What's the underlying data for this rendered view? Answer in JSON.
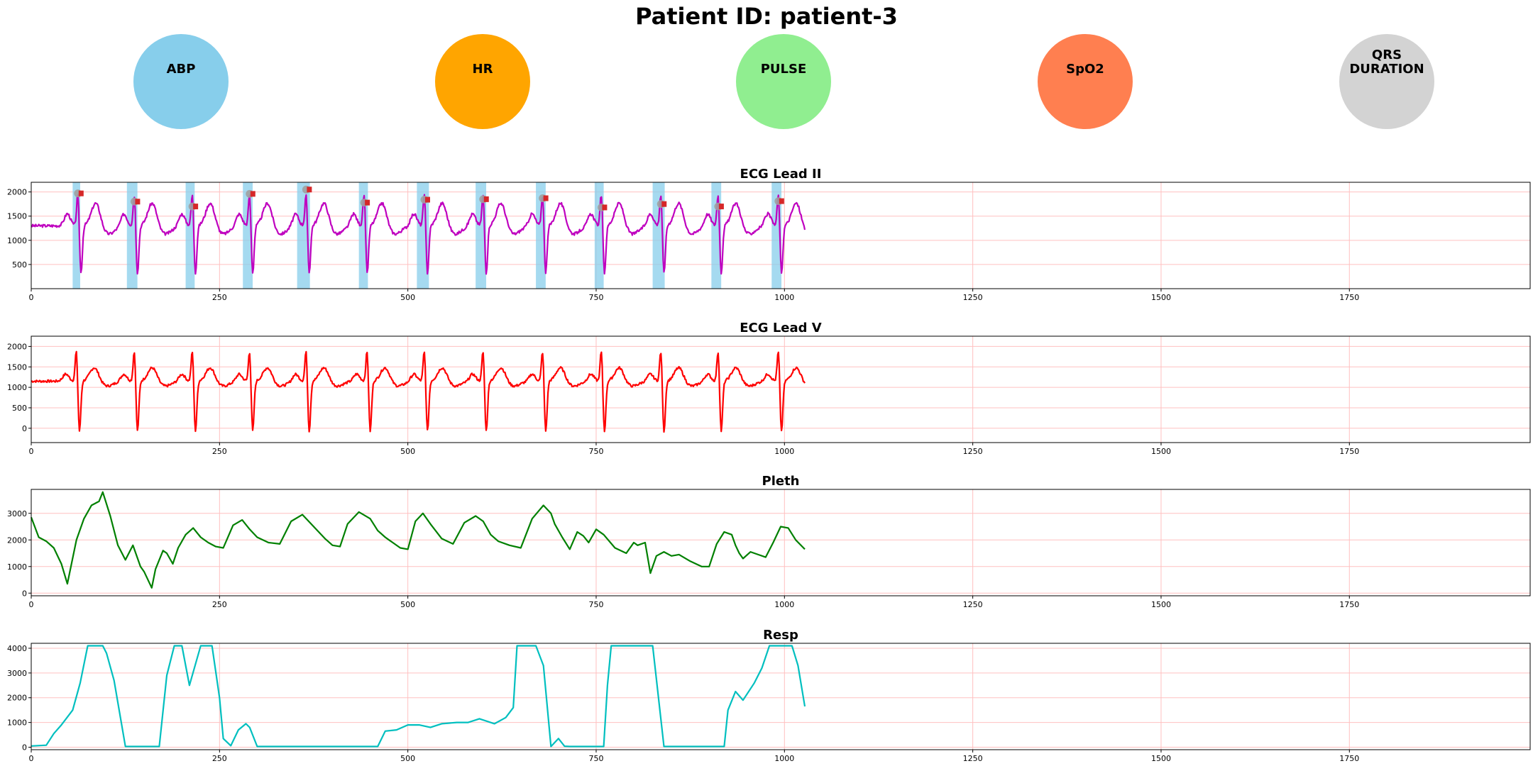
{
  "page": {
    "title": "Patient ID: patient-3"
  },
  "vitals": [
    {
      "label": "ABP",
      "color": "#87ceeb"
    },
    {
      "label": "HR",
      "color": "#ffa500"
    },
    {
      "label": "PULSE",
      "color": "#90ee90"
    },
    {
      "label": "SpO2",
      "color": "#ff7f50"
    },
    {
      "label": "QRS\nDURATION",
      "color": "#d3d3d3"
    }
  ],
  "chart_data": [
    {
      "type": "line",
      "title": "ECG Lead II",
      "color": "#bf00bf",
      "xlim": [
        0,
        1990
      ],
      "ylim": [
        0,
        2200
      ],
      "xticks": [
        0,
        250,
        500,
        750,
        1000,
        1250,
        1500,
        1750
      ],
      "yticks": [
        500,
        1000,
        1500,
        2000
      ],
      "grid": true,
      "baseline": 1300,
      "amp": 500,
      "spike": 700,
      "dip": 1000,
      "seed": 3,
      "beats": [
        62,
        137,
        214,
        290,
        365,
        442,
        522,
        600,
        679,
        757,
        836,
        912,
        992
      ],
      "peak_values": [
        1970,
        1800,
        1700,
        1960,
        2050,
        1780,
        1840,
        1850,
        1870,
        1680,
        1750,
        1700,
        1810
      ],
      "qrs_regions": [
        [
          55,
          65
        ],
        [
          127,
          141
        ],
        [
          205,
          217
        ],
        [
          281,
          294
        ],
        [
          353,
          370
        ],
        [
          435,
          447
        ],
        [
          512,
          528
        ],
        [
          590,
          604
        ],
        [
          670,
          683
        ],
        [
          748,
          760
        ],
        [
          825,
          841
        ],
        [
          903,
          916
        ],
        [
          983,
          996
        ]
      ],
      "region_color": "#87ceeb",
      "marker_color": "#d62728"
    },
    {
      "type": "line",
      "title": "ECG Lead V",
      "color": "#ff0000",
      "xlim": [
        0,
        1990
      ],
      "ylim": [
        -350,
        2250
      ],
      "xticks": [
        0,
        250,
        500,
        750,
        1000,
        1250,
        1500,
        1750
      ],
      "yticks": [
        0,
        500,
        1000,
        1500,
        2000
      ],
      "grid": true,
      "baseline": 1150,
      "amp": 350,
      "spike": 800,
      "dip": 1250,
      "seed": 7,
      "beats": [
        60,
        137,
        214,
        290,
        365,
        446,
        522,
        600,
        679,
        757,
        836,
        912,
        992
      ]
    },
    {
      "type": "line",
      "title": "Pleth",
      "color": "#008000",
      "xlim": [
        0,
        1990
      ],
      "ylim": [
        -100,
        3900
      ],
      "xticks": [
        0,
        250,
        500,
        750,
        1000,
        1250,
        1500,
        1750
      ],
      "yticks": [
        0,
        1000,
        2000,
        3000
      ],
      "grid": true,
      "x": [
        0,
        10,
        20,
        30,
        40,
        48,
        60,
        70,
        80,
        90,
        95,
        105,
        115,
        125,
        135,
        145,
        150,
        160,
        165,
        175,
        180,
        188,
        195,
        205,
        215,
        225,
        235,
        245,
        255,
        268,
        280,
        290,
        300,
        315,
        330,
        345,
        360,
        375,
        390,
        400,
        410,
        420,
        435,
        450,
        460,
        470,
        475,
        480,
        490,
        500,
        510,
        520,
        530,
        545,
        560,
        575,
        590,
        600,
        610,
        620,
        635,
        650,
        665,
        680,
        690,
        695,
        705,
        715,
        725,
        733,
        740,
        750,
        760,
        775,
        790,
        800,
        805,
        815,
        822,
        830,
        840,
        850,
        860,
        875,
        890,
        900,
        910,
        920,
        930,
        935,
        940,
        945,
        955,
        965,
        975,
        985,
        995,
        1005,
        1015,
        1027
      ],
      "y": [
        2850,
        2100,
        1950,
        1700,
        1100,
        350,
        2000,
        2800,
        3300,
        3450,
        3800,
        2900,
        1800,
        1250,
        1800,
        1000,
        800,
        200,
        900,
        1600,
        1500,
        1100,
        1700,
        2200,
        2450,
        2100,
        1900,
        1750,
        1700,
        2550,
        2750,
        2400,
        2100,
        1900,
        1850,
        2700,
        2950,
        2500,
        2050,
        1800,
        1750,
        2600,
        3050,
        2800,
        2350,
        2100,
        2000,
        1900,
        1700,
        1650,
        2700,
        3000,
        2600,
        2050,
        1850,
        2650,
        2900,
        2700,
        2200,
        1950,
        1800,
        1700,
        2800,
        3300,
        3000,
        2600,
        2100,
        1650,
        2300,
        2150,
        1900,
        2400,
        2200,
        1700,
        1500,
        1900,
        1800,
        1900,
        750,
        1400,
        1550,
        1400,
        1450,
        1200,
        1000,
        1000,
        1850,
        2300,
        2200,
        1800,
        1500,
        1300,
        1550,
        1450,
        1350,
        1900,
        2500,
        2450,
        2000,
        1650
      ]
    },
    {
      "type": "line",
      "title": "Resp",
      "color": "#00bfbf",
      "xlim": [
        0,
        1990
      ],
      "ylim": [
        -100,
        4200
      ],
      "xticks": [
        0,
        250,
        500,
        750,
        1000,
        1250,
        1500,
        1750
      ],
      "yticks": [
        0,
        1000,
        2000,
        3000,
        4000
      ],
      "grid": true,
      "x": [
        0,
        20,
        30,
        40,
        55,
        65,
        75,
        95,
        100,
        110,
        125,
        170,
        180,
        190,
        200,
        210,
        225,
        240,
        250,
        255,
        265,
        275,
        285,
        290,
        300,
        460,
        470,
        485,
        500,
        515,
        530,
        545,
        565,
        580,
        595,
        615,
        630,
        640,
        645,
        670,
        680,
        690,
        700,
        708,
        715,
        760,
        765,
        770,
        825,
        840,
        920,
        925,
        935,
        945,
        960,
        970,
        980,
        1010,
        1018,
        1027
      ],
      "y": [
        50,
        80,
        550,
        900,
        1500,
        2600,
        4100,
        4100,
        3800,
        2700,
        30,
        30,
        2900,
        4100,
        4100,
        2500,
        4100,
        4100,
        2000,
        350,
        60,
        700,
        950,
        800,
        30,
        30,
        650,
        700,
        900,
        900,
        800,
        950,
        1000,
        1000,
        1150,
        950,
        1200,
        1600,
        4100,
        4100,
        3300,
        30,
        350,
        40,
        30,
        30,
        2500,
        4100,
        4100,
        30,
        30,
        1500,
        2250,
        1900,
        2600,
        3200,
        4100,
        4100,
        3300,
        1650
      ]
    }
  ]
}
